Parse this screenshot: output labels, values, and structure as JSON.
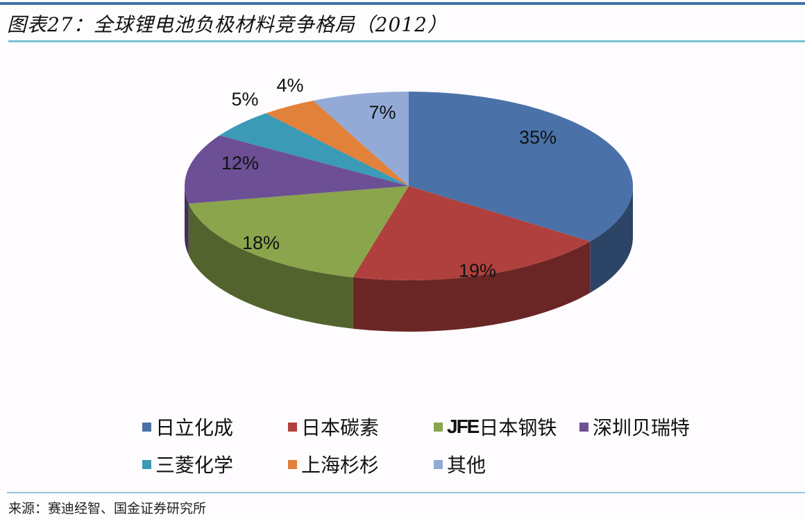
{
  "header": {
    "title": "图表27：全球锂电池负极材料竞争格局（2012）"
  },
  "footer": {
    "source": "来源：赛迪经智、国金证券研究所"
  },
  "legend": {
    "items": [
      {
        "label": "日立化成",
        "color": "#4a72a8"
      },
      {
        "label": "日本碳素",
        "color": "#b0403e"
      },
      {
        "label_prefix": "JFE",
        "label": "日本钢铁",
        "color": "#8aa54c"
      },
      {
        "label": "深圳贝瑞特",
        "color": "#6c4f94"
      },
      {
        "label": "三菱化学",
        "color": "#3b9ab5"
      },
      {
        "label": "上海杉杉",
        "color": "#e2813a"
      },
      {
        "label": "其他",
        "color": "#93aad6"
      }
    ]
  },
  "slice_labels": [
    "35%",
    "19%",
    "18%",
    "12%",
    "5%",
    "4%",
    "7%"
  ],
  "chart_data": {
    "type": "pie",
    "title": "图表27：全球锂电池负极材料竞争格局（2012）",
    "style": "3d",
    "categories": [
      "日立化成",
      "日本碳素",
      "JFE日本钢铁",
      "深圳贝瑞特",
      "三菱化学",
      "上海杉杉",
      "其他"
    ],
    "values": [
      35,
      19,
      18,
      12,
      5,
      4,
      7
    ],
    "unit": "%",
    "colors": [
      "#4a72a8",
      "#b0403e",
      "#8aa54c",
      "#6c4f94",
      "#3b9ab5",
      "#e2813a",
      "#93aad6"
    ],
    "legend_position": "bottom",
    "source": "来源：赛迪经智、国金证券研究所"
  }
}
